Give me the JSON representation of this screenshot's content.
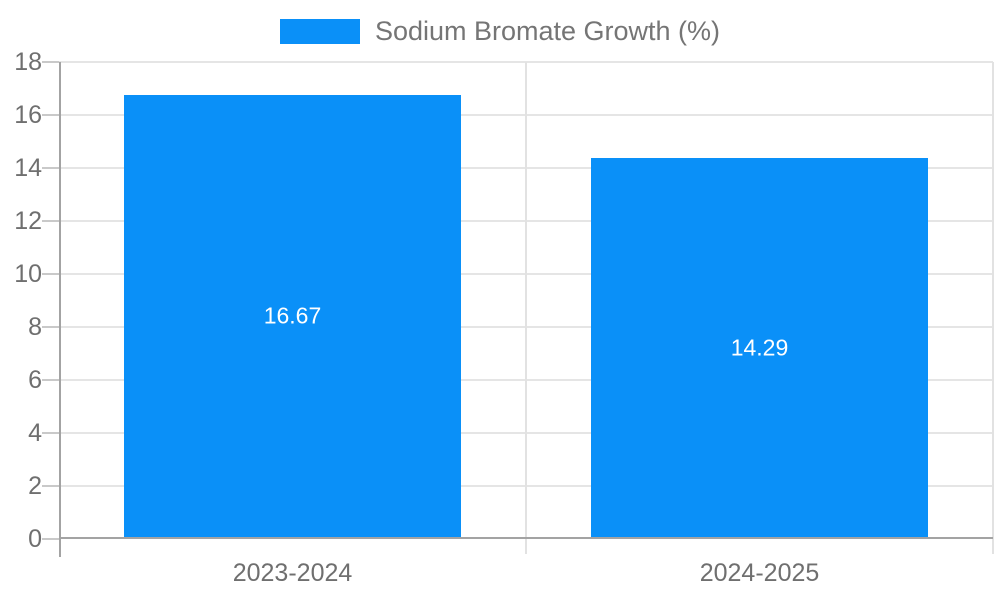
{
  "chart_data": {
    "type": "bar",
    "title": "",
    "legend": {
      "label": "Sodium Bromate Growth (%)",
      "position": "top"
    },
    "categories": [
      "2023-2024",
      "2024-2025"
    ],
    "series": [
      {
        "name": "Sodium Bromate Growth (%)",
        "color": "#0a90f8",
        "values": [
          16.67,
          14.29
        ],
        "data_labels": [
          "16.67",
          "14.29"
        ]
      }
    ],
    "xlabel": "",
    "ylabel": "",
    "ylim": [
      0,
      18
    ],
    "ytick_step": 2,
    "yticks": [
      0,
      2,
      4,
      6,
      8,
      10,
      12,
      14,
      16,
      18
    ],
    "grid": true,
    "bar_width_frac": 0.72
  },
  "colors": {
    "bar": "#0a90f8",
    "axis": "#a3a3a3",
    "gridline": "#e5e5e5",
    "divider": "#e2e2e2",
    "tick_mark": "#c9c9c9",
    "tick_label": "#6f6f6f",
    "legend_text": "#757575",
    "data_label": "#ffffff",
    "background": "#ffffff"
  }
}
